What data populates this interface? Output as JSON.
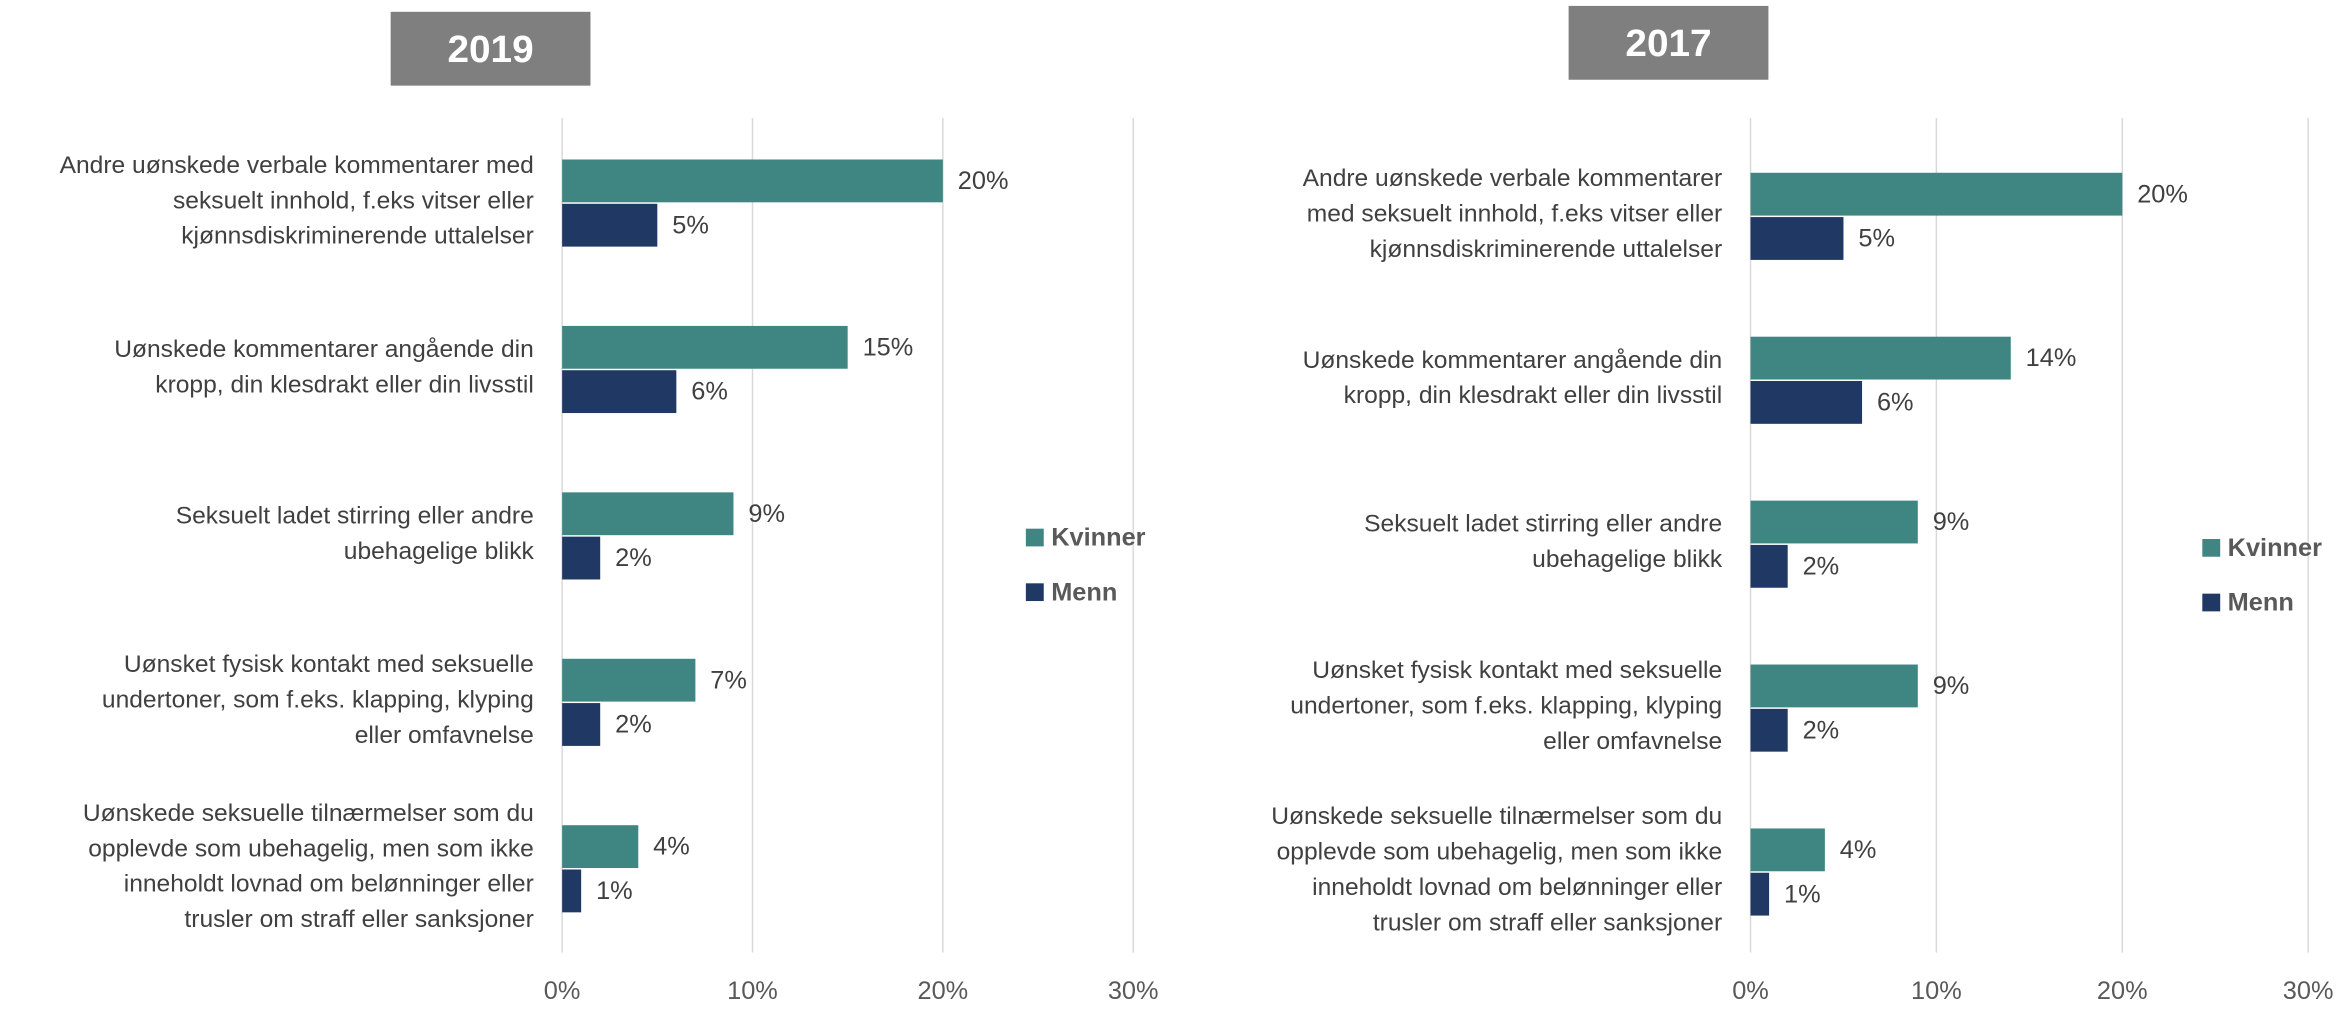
{
  "chart_data": [
    {
      "type": "bar",
      "orientation": "horizontal",
      "title": "2019",
      "categories": [
        "Andre uønskede verbale kommentarer med\nseksuelt innhold, f.eks vitser eller\nkjønnsdiskriminerende uttalelser",
        "Uønskede kommentarer angående din\nkropp, din klesdrakt eller din livsstil",
        "Seksuelt ladet stirring eller andre\nubehagelige blikk",
        "Uønsket fysisk kontakt med seksuelle\nundertoner, som f.eks. klapping, klyping\neller omfavnelse",
        "Uønskede seksuelle tilnærmelser som du\nopplevde som ubehagelig, men som ikke\ninneholdt lovnad om belønninger eller\ntrusler om straff eller sanksjoner"
      ],
      "series": [
        {
          "name": "Kvinner",
          "color": "#3f8683",
          "values": [
            20,
            15,
            9,
            7,
            4
          ],
          "value_labels": [
            "20%",
            "15%",
            "9%",
            "7%",
            "4%"
          ]
        },
        {
          "name": "Menn",
          "color": "#203864",
          "values": [
            5,
            6,
            2,
            2,
            1
          ],
          "value_labels": [
            "5%",
            "6%",
            "2%",
            "2%",
            "1%"
          ]
        }
      ],
      "xlim": [
        0,
        30
      ],
      "xticks": [
        {
          "value": 0,
          "label": "0%"
        },
        {
          "value": 10,
          "label": "10%"
        },
        {
          "value": 20,
          "label": "20%"
        },
        {
          "value": 30,
          "label": "30%"
        }
      ],
      "grid": true,
      "legend": "right"
    },
    {
      "type": "bar",
      "orientation": "horizontal",
      "title": "2017",
      "categories": [
        "Andre uønskede verbale kommentarer\nmed seksuelt innhold, f.eks vitser eller\nkjønnsdiskriminerende uttalelser",
        "Uønskede kommentarer angående din\nkropp, din klesdrakt eller din livsstil",
        "Seksuelt ladet stirring eller andre\nubehagelige blikk",
        "Uønsket fysisk kontakt med seksuelle\nundertoner, som f.eks. klapping, klyping\neller omfavnelse",
        "Uønskede seksuelle tilnærmelser som du\nopplevde som ubehagelig, men som ikke\ninneholdt lovnad om belønninger eller\ntrusler om straff eller sanksjoner"
      ],
      "series": [
        {
          "name": "Kvinner",
          "color": "#3f8683",
          "values": [
            20,
            14,
            9,
            9,
            4
          ],
          "value_labels": [
            "20%",
            "14%",
            "9%",
            "9%",
            "4%"
          ]
        },
        {
          "name": "Menn",
          "color": "#203864",
          "values": [
            5,
            6,
            2,
            2,
            1
          ],
          "value_labels": [
            "5%",
            "6%",
            "2%",
            "2%",
            "1%"
          ]
        }
      ],
      "xlim": [
        0,
        30
      ],
      "xticks": [
        {
          "value": 0,
          "label": "0%"
        },
        {
          "value": 10,
          "label": "10%"
        },
        {
          "value": 20,
          "label": "20%"
        },
        {
          "value": 30,
          "label": "30%"
        }
      ],
      "grid": true,
      "legend": "right"
    }
  ]
}
